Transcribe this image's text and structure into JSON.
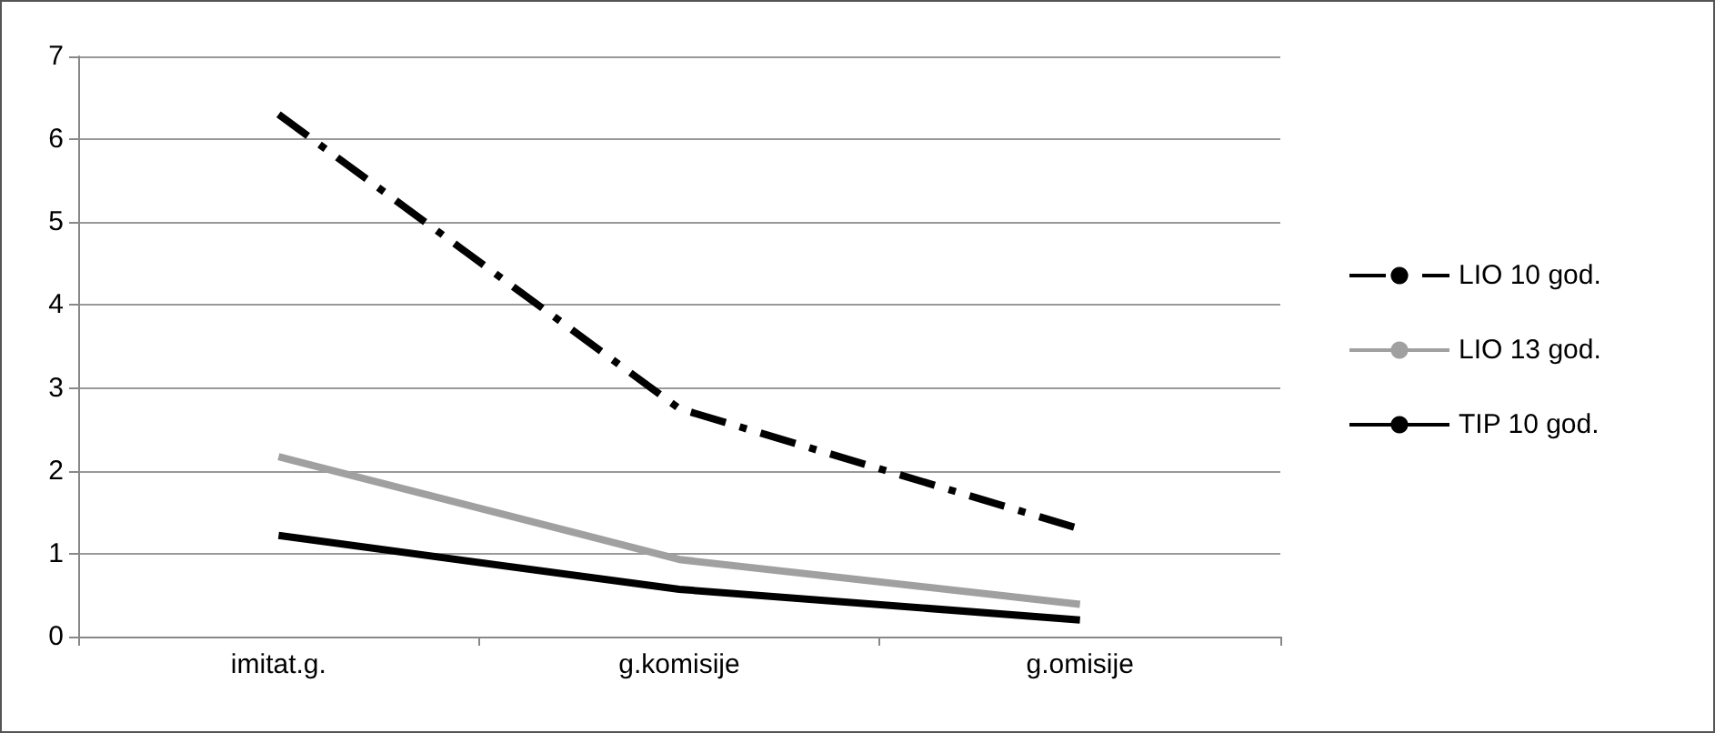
{
  "chart_data": {
    "type": "line",
    "categories": [
      "imitat.g.",
      "g.komisije",
      "g.omisije"
    ],
    "series": [
      {
        "name": "LIO 10 god.",
        "color": "#000000",
        "values": [
          6.3,
          2.75,
          1.3
        ],
        "line_style": "dashed"
      },
      {
        "name": "LIO 13 god.",
        "color": "#a0a0a0",
        "values": [
          2.17,
          0.93,
          0.39
        ]
      },
      {
        "name": "TIP 10 god.",
        "color": "#000000",
        "values": [
          1.22,
          0.57,
          0.2
        ]
      }
    ],
    "ylim": [
      0,
      7
    ],
    "yticks": [
      0,
      1,
      2,
      3,
      4,
      5,
      6,
      7
    ],
    "grid": "y",
    "legend": "right",
    "marker": "none"
  }
}
